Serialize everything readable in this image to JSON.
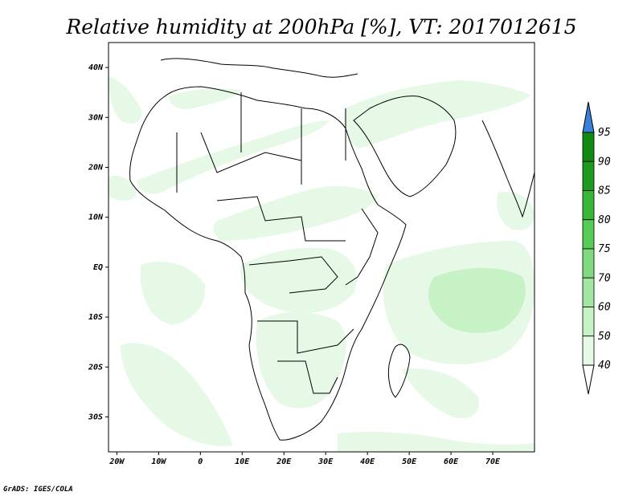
{
  "title": "Relative humidity at 200hPa [%], VT: 2017012615",
  "credit": "GrADS: IGES/COLA",
  "map": {
    "projection": "latlon",
    "lon_range": [
      -22,
      80
    ],
    "lat_range": [
      -37,
      45
    ],
    "x_ticks": [
      "20W",
      "10W",
      "0",
      "10E",
      "20E",
      "30E",
      "40E",
      "50E",
      "60E",
      "70E"
    ],
    "x_tick_values": [
      -20,
      -10,
      0,
      10,
      20,
      30,
      40,
      50,
      60,
      70
    ],
    "y_ticks": [
      "40N",
      "30N",
      "20N",
      "10N",
      "EQ",
      "10S",
      "20S",
      "30S"
    ],
    "y_tick_values": [
      40,
      30,
      20,
      10,
      0,
      -10,
      -20,
      -30
    ],
    "borders_color": "#000000"
  },
  "colorbar": {
    "levels": [
      "40",
      "50",
      "60",
      "70",
      "75",
      "80",
      "85",
      "90",
      "95"
    ],
    "colors": [
      "#ffffff",
      "#e6f9e6",
      "#c6f2c6",
      "#a1e6a1",
      "#7fd97f",
      "#56cc56",
      "#37b637",
      "#1e9a1e",
      "#3a7fd9"
    ],
    "extend_top_color": "#3a7fd9",
    "extend_bottom_color": "#ffffff"
  },
  "humidity_regions": [
    {
      "name": "west-atlantic-band",
      "level": 1
    },
    {
      "name": "sahara-diagonal-band",
      "level": 1
    },
    {
      "name": "middle-east-band",
      "level": 1
    },
    {
      "name": "central-africa",
      "level": 1
    },
    {
      "name": "southern-africa",
      "level": 1
    },
    {
      "name": "indian-ocean",
      "level": 2
    }
  ]
}
